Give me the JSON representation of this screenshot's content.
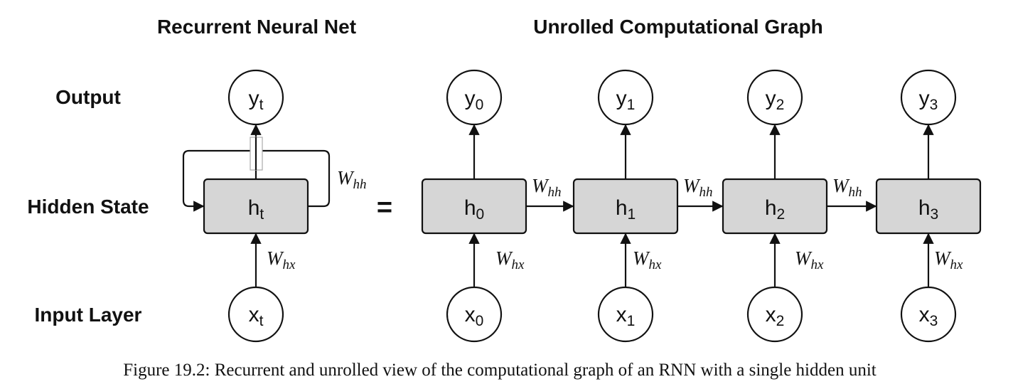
{
  "headings": {
    "left": "Recurrent Neural Net",
    "right": "Unrolled Computational Graph"
  },
  "row_labels": {
    "output": "Output",
    "hidden": "Hidden State",
    "input": "Input Layer"
  },
  "equals": "=",
  "recurrent": {
    "output": {
      "base": "y",
      "sub": "t"
    },
    "hidden": {
      "base": "h",
      "sub": "t"
    },
    "input": {
      "base": "x",
      "sub": "t"
    },
    "w_hh": {
      "base": "W",
      "sub": "hh"
    },
    "w_hx": {
      "base": "W",
      "sub": "hx"
    }
  },
  "unrolled": [
    {
      "output": {
        "base": "y",
        "sub": "0"
      },
      "hidden": {
        "base": "h",
        "sub": "0"
      },
      "input": {
        "base": "x",
        "sub": "0"
      },
      "w_hx": {
        "base": "W",
        "sub": "hx"
      }
    },
    {
      "output": {
        "base": "y",
        "sub": "1"
      },
      "hidden": {
        "base": "h",
        "sub": "1"
      },
      "input": {
        "base": "x",
        "sub": "1"
      },
      "w_hx": {
        "base": "W",
        "sub": "hx"
      }
    },
    {
      "output": {
        "base": "y",
        "sub": "2"
      },
      "hidden": {
        "base": "h",
        "sub": "2"
      },
      "input": {
        "base": "x",
        "sub": "2"
      },
      "w_hx": {
        "base": "W",
        "sub": "hx"
      }
    },
    {
      "output": {
        "base": "y",
        "sub": "3"
      },
      "hidden": {
        "base": "h",
        "sub": "3"
      },
      "input": {
        "base": "x",
        "sub": "3"
      },
      "w_hx": {
        "base": "W",
        "sub": "hx"
      }
    }
  ],
  "transitions": [
    {
      "base": "W",
      "sub": "hh"
    },
    {
      "base": "W",
      "sub": "hh"
    },
    {
      "base": "W",
      "sub": "hh"
    }
  ],
  "caption": "Figure 19.2: Recurrent and unrolled view of the computational graph of an RNN with a single hidden unit"
}
